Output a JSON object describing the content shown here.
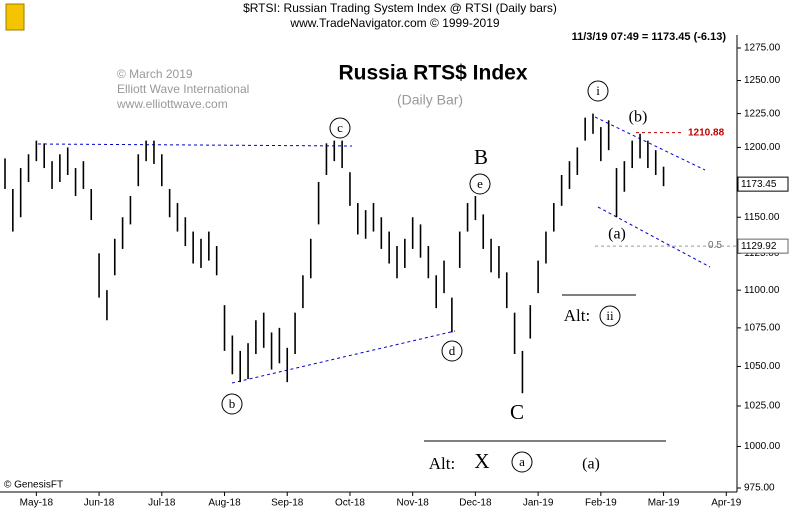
{
  "chart_data": {
    "type": "ohlc",
    "header": "$RTSI:  Russian Trading System Index @ RTSI  (Daily bars)",
    "source": "www.TradeNavigator.com © 1999-2019",
    "quote": "11/3/19 07:49 = 1173.45 (-6.13)",
    "title": "Russia RTS$ Index",
    "subtitle": "(Daily Bar)",
    "credits": [
      "© March 2019",
      "Elliott Wave International",
      "www.elliottwave.com"
    ],
    "data_credit": "© GenesisFT",
    "color": "#000000",
    "log_scale": true,
    "categories": [
      null,
      null,
      null,
      null,
      "May-18",
      null,
      null,
      null,
      null,
      null,
      null,
      null,
      "Jun-18",
      null,
      null,
      null,
      null,
      null,
      null,
      null,
      "Jul-18",
      null,
      null,
      null,
      null,
      null,
      null,
      null,
      "Aug-18",
      null,
      null,
      null,
      null,
      null,
      null,
      null,
      "Sep-18",
      null,
      null,
      null,
      null,
      null,
      null,
      null,
      "Oct-18",
      null,
      null,
      null,
      null,
      null,
      null,
      null,
      "Nov-18",
      null,
      null,
      null,
      null,
      null,
      null,
      null,
      "Dec-18",
      null,
      null,
      null,
      null,
      null,
      null,
      null,
      "Jan-19",
      null,
      null,
      null,
      null,
      null,
      null,
      null,
      "Feb-19",
      null,
      null,
      null,
      null,
      null,
      null,
      null,
      "Mar-19",
      null,
      null,
      null,
      null,
      null,
      null,
      null,
      "Apr-19"
    ],
    "high": [
      1192,
      1170,
      1185,
      1195,
      1205,
      1203,
      1190,
      1195,
      1200,
      1185,
      1190,
      1170,
      1125,
      1100,
      1135,
      1150,
      1165,
      1195,
      1205,
      1205,
      1195,
      1170,
      1160,
      1150,
      1140,
      1135,
      1140,
      1130,
      1090,
      1070,
      1060,
      1065,
      1080,
      1085,
      1072,
      1075,
      1062,
      1085,
      1110,
      1135,
      1175,
      1203,
      1205,
      1205,
      1182,
      1160,
      1155,
      1160,
      1150,
      1140,
      1130,
      1135,
      1150,
      1145,
      1130,
      1110,
      1120,
      1095,
      1140,
      1160,
      1165,
      1152,
      1135,
      1130,
      1112,
      1085,
      1060,
      1090,
      1120,
      1140,
      1160,
      1180,
      1190,
      1200,
      1222,
      1225,
      1215,
      1220,
      1185,
      1190,
      1205,
      1210,
      1205,
      1198,
      1186,
      null,
      null,
      null,
      null,
      null,
      null,
      null,
      null
    ],
    "low": [
      1170,
      1140,
      1150,
      1175,
      1190,
      1185,
      1170,
      1175,
      1180,
      1165,
      1170,
      1148,
      1095,
      1080,
      1110,
      1128,
      1145,
      1172,
      1190,
      1188,
      1172,
      1150,
      1140,
      1130,
      1118,
      1115,
      1120,
      1110,
      1060,
      1045,
      1040,
      1042,
      1058,
      1062,
      1048,
      1052,
      1040,
      1058,
      1088,
      1108,
      1145,
      1180,
      1190,
      1185,
      1158,
      1138,
      1135,
      1140,
      1128,
      1118,
      1108,
      1115,
      1128,
      1122,
      1108,
      1088,
      1098,
      1072,
      1115,
      1140,
      1148,
      1128,
      1112,
      1108,
      1088,
      1058,
      1033,
      1068,
      1098,
      1118,
      1140,
      1158,
      1170,
      1180,
      1205,
      1210,
      1190,
      1198,
      1150,
      1168,
      1185,
      1192,
      1185,
      1180,
      1172,
      null,
      null,
      null,
      null,
      null,
      null,
      null,
      null
    ],
    "ylim": [
      975,
      1275
    ],
    "yticks": [
      {
        "value": 975,
        "label": "975.00"
      },
      {
        "value": 1000,
        "label": "1000.00"
      },
      {
        "value": 1025,
        "label": "1025.00"
      },
      {
        "value": 1050,
        "label": "1050.00"
      },
      {
        "value": 1075,
        "label": "1075.00"
      },
      {
        "value": 1100,
        "label": "1100.00"
      },
      {
        "value": 1125,
        "label": "1125.00"
      },
      {
        "value": 1150,
        "label": "1150.00"
      },
      {
        "value": 1175,
        "label": "1175.00"
      },
      {
        "value": 1200,
        "label": "1200.00"
      },
      {
        "value": 1225,
        "label": "1225.00"
      },
      {
        "value": 1250,
        "label": "1250.00"
      },
      {
        "value": 1275,
        "label": "1275.00"
      }
    ],
    "last_price": 1173.45,
    "resistance": {
      "value": 1210.88,
      "color": "#c00000"
    },
    "retracement": {
      "value": 1129.92,
      "label": "0.5"
    },
    "wave_labels": [
      "c",
      "b",
      "d",
      "e",
      "B",
      "C",
      "i",
      "(b)",
      "(a)",
      "Alt:",
      "ii",
      "Alt:",
      "X",
      "a",
      "(a)"
    ]
  }
}
